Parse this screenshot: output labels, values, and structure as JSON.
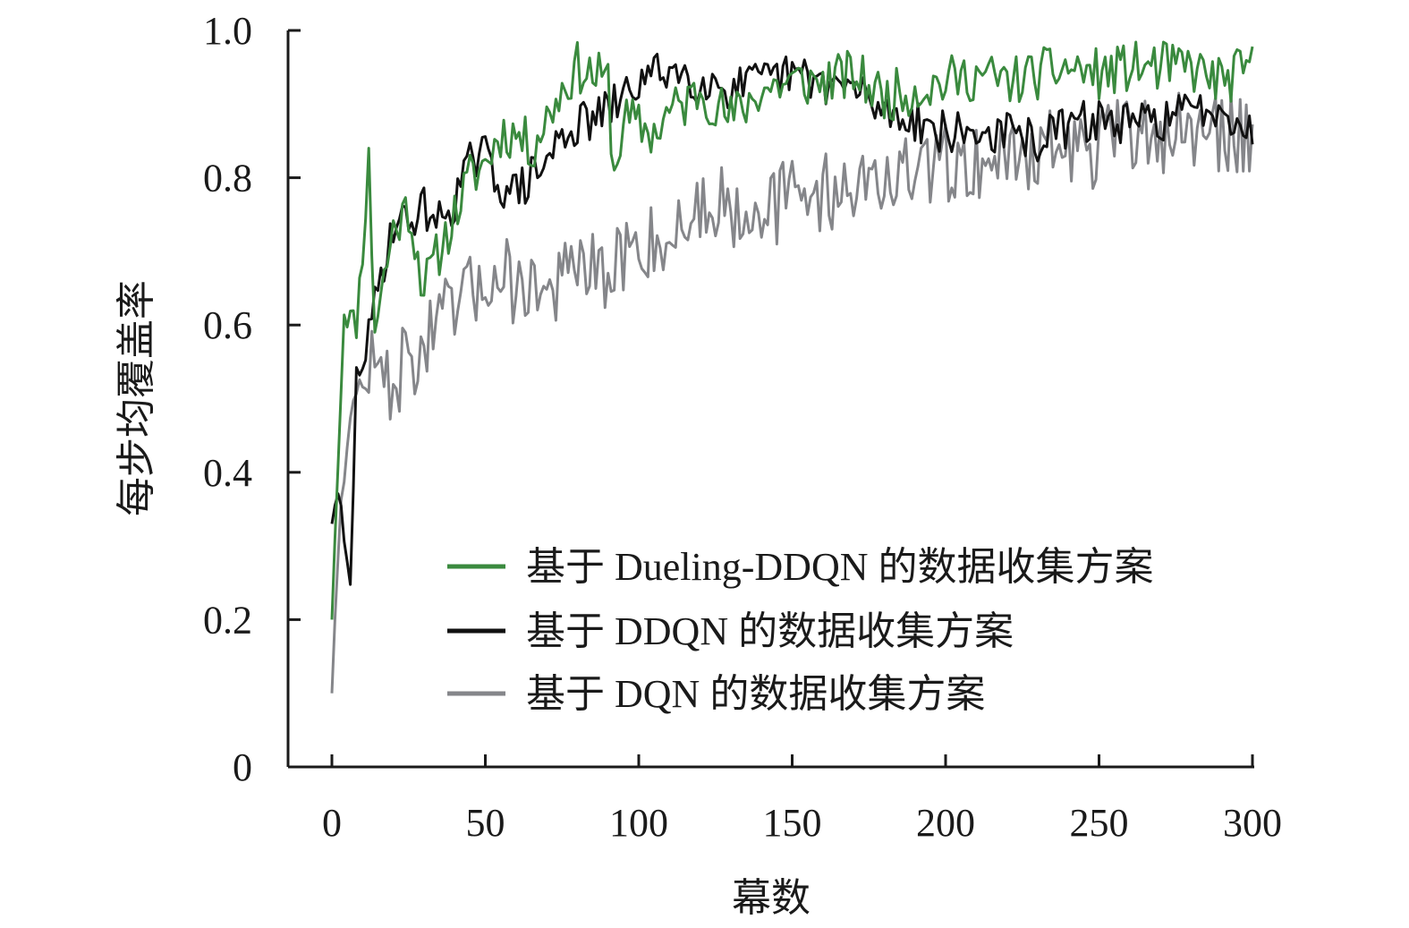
{
  "chart_data": {
    "type": "line",
    "title": "",
    "xlabel": "幕数",
    "ylabel": "每步均覆盖率",
    "xlim": [
      0,
      300
    ],
    "ylim": [
      0,
      1.0
    ],
    "x_ticks": [
      0,
      50,
      100,
      150,
      200,
      250,
      300
    ],
    "x_tick_labels": [
      "0",
      "50",
      "100",
      "150",
      "200",
      "250",
      "300"
    ],
    "y_ticks": [
      0,
      0.2,
      0.4,
      0.6,
      0.8,
      1.0
    ],
    "y_tick_labels": [
      "0",
      "0.2",
      "0.4",
      "0.6",
      "0.8",
      "1.0"
    ],
    "grid": false,
    "legend_position": "lower-right",
    "series": [
      {
        "name": "基于 Dueling-DDQN 的数据收集方案",
        "color": "#3a8a3e",
        "anchors": [
          [
            0,
            0.2
          ],
          [
            2,
            0.42
          ],
          [
            4,
            0.62
          ],
          [
            8,
            0.6
          ],
          [
            12,
            0.82
          ],
          [
            14,
            0.6
          ],
          [
            20,
            0.73
          ],
          [
            25,
            0.76
          ],
          [
            30,
            0.65
          ],
          [
            35,
            0.7
          ],
          [
            40,
            0.75
          ],
          [
            45,
            0.8
          ],
          [
            50,
            0.82
          ],
          [
            55,
            0.86
          ],
          [
            60,
            0.86
          ],
          [
            65,
            0.84
          ],
          [
            70,
            0.88
          ],
          [
            75,
            0.92
          ],
          [
            80,
            0.95
          ],
          [
            85,
            0.94
          ],
          [
            90,
            0.93
          ],
          [
            92,
            0.8
          ],
          [
            95,
            0.88
          ],
          [
            100,
            0.87
          ],
          [
            105,
            0.86
          ],
          [
            110,
            0.89
          ],
          [
            115,
            0.9
          ],
          [
            120,
            0.92
          ],
          [
            125,
            0.9
          ],
          [
            130,
            0.88
          ],
          [
            135,
            0.9
          ],
          [
            140,
            0.92
          ],
          [
            150,
            0.93
          ],
          [
            160,
            0.93
          ],
          [
            170,
            0.94
          ],
          [
            180,
            0.91
          ],
          [
            190,
            0.92
          ],
          [
            200,
            0.93
          ],
          [
            210,
            0.94
          ],
          [
            220,
            0.93
          ],
          [
            230,
            0.94
          ],
          [
            240,
            0.95
          ],
          [
            250,
            0.94
          ],
          [
            260,
            0.95
          ],
          [
            270,
            0.95
          ],
          [
            280,
            0.95
          ],
          [
            290,
            0.93
          ],
          [
            300,
            0.95
          ]
        ]
      },
      {
        "name": "基于 DDQN 的数据收集方案",
        "color": "#111111",
        "anchors": [
          [
            0,
            0.33
          ],
          [
            2,
            0.38
          ],
          [
            4,
            0.3
          ],
          [
            6,
            0.24
          ],
          [
            8,
            0.53
          ],
          [
            12,
            0.58
          ],
          [
            16,
            0.67
          ],
          [
            20,
            0.74
          ],
          [
            25,
            0.74
          ],
          [
            30,
            0.76
          ],
          [
            35,
            0.74
          ],
          [
            40,
            0.77
          ],
          [
            45,
            0.82
          ],
          [
            50,
            0.83
          ],
          [
            55,
            0.79
          ],
          [
            60,
            0.78
          ],
          [
            65,
            0.8
          ],
          [
            70,
            0.82
          ],
          [
            75,
            0.86
          ],
          [
            80,
            0.87
          ],
          [
            85,
            0.88
          ],
          [
            90,
            0.89
          ],
          [
            95,
            0.91
          ],
          [
            100,
            0.93
          ],
          [
            105,
            0.94
          ],
          [
            110,
            0.95
          ],
          [
            115,
            0.94
          ],
          [
            120,
            0.93
          ],
          [
            125,
            0.93
          ],
          [
            130,
            0.92
          ],
          [
            140,
            0.93
          ],
          [
            150,
            0.94
          ],
          [
            160,
            0.93
          ],
          [
            170,
            0.92
          ],
          [
            180,
            0.89
          ],
          [
            190,
            0.88
          ],
          [
            200,
            0.86
          ],
          [
            210,
            0.86
          ],
          [
            220,
            0.86
          ],
          [
            230,
            0.85
          ],
          [
            240,
            0.87
          ],
          [
            250,
            0.88
          ],
          [
            260,
            0.87
          ],
          [
            270,
            0.88
          ],
          [
            280,
            0.89
          ],
          [
            290,
            0.9
          ],
          [
            300,
            0.86
          ]
        ]
      },
      {
        "name": "基于 DQN 的数据收集方案",
        "color": "#85868a",
        "anchors": [
          [
            0,
            0.1
          ],
          [
            2,
            0.3
          ],
          [
            4,
            0.42
          ],
          [
            8,
            0.5
          ],
          [
            12,
            0.55
          ],
          [
            18,
            0.52
          ],
          [
            25,
            0.55
          ],
          [
            30,
            0.57
          ],
          [
            35,
            0.6
          ],
          [
            40,
            0.62
          ],
          [
            45,
            0.64
          ],
          [
            50,
            0.66
          ],
          [
            55,
            0.68
          ],
          [
            60,
            0.65
          ],
          [
            65,
            0.66
          ],
          [
            70,
            0.64
          ],
          [
            75,
            0.66
          ],
          [
            80,
            0.68
          ],
          [
            85,
            0.67
          ],
          [
            90,
            0.65
          ],
          [
            95,
            0.7
          ],
          [
            100,
            0.7
          ],
          [
            105,
            0.72
          ],
          [
            110,
            0.71
          ],
          [
            115,
            0.74
          ],
          [
            120,
            0.76
          ],
          [
            125,
            0.77
          ],
          [
            130,
            0.76
          ],
          [
            135,
            0.76
          ],
          [
            140,
            0.77
          ],
          [
            145,
            0.76
          ],
          [
            150,
            0.78
          ],
          [
            160,
            0.78
          ],
          [
            170,
            0.79
          ],
          [
            180,
            0.8
          ],
          [
            190,
            0.8
          ],
          [
            200,
            0.82
          ],
          [
            210,
            0.82
          ],
          [
            220,
            0.83
          ],
          [
            230,
            0.84
          ],
          [
            240,
            0.84
          ],
          [
            250,
            0.84
          ],
          [
            260,
            0.86
          ],
          [
            270,
            0.86
          ],
          [
            280,
            0.86
          ],
          [
            290,
            0.86
          ],
          [
            300,
            0.86
          ]
        ]
      }
    ]
  }
}
